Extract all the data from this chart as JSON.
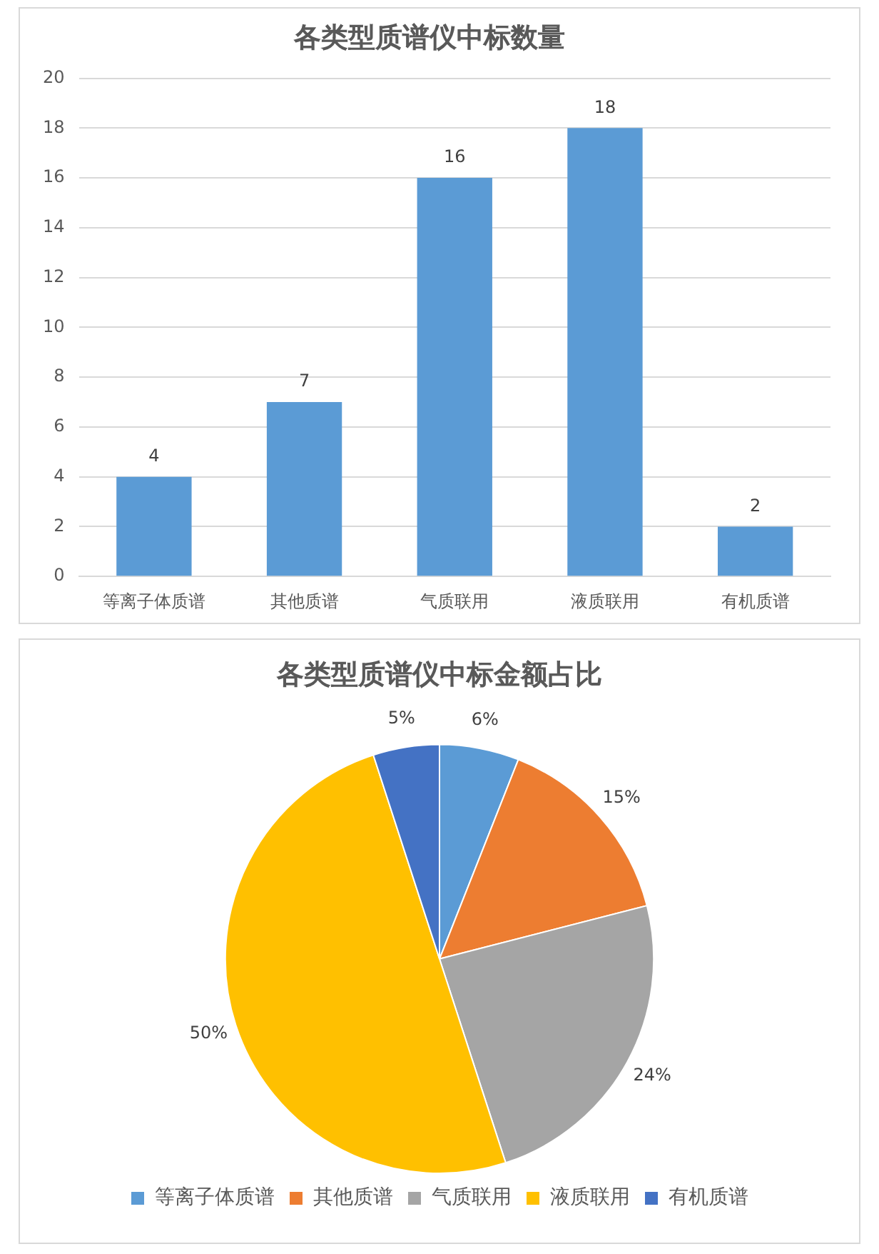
{
  "chart_data": [
    {
      "type": "bar",
      "title": "各类型质谱仪中标数量",
      "categories": [
        "等离子体质谱",
        "其他质谱",
        "气质联用",
        "液质联用",
        "有机质谱"
      ],
      "values": [
        4,
        7,
        16,
        18,
        2
      ],
      "color": "#5b9bd5",
      "ylim": [
        0,
        20
      ],
      "yticks": [
        0,
        2,
        4,
        6,
        8,
        10,
        12,
        14,
        16,
        18,
        20
      ],
      "grid": "y",
      "data_labels": true,
      "legend": false
    },
    {
      "type": "pie",
      "title": "各类型质谱仪中标金额占比",
      "categories": [
        "等离子体质谱",
        "其他质谱",
        "气质联用",
        "液质联用",
        "有机质谱"
      ],
      "values": [
        6,
        15,
        24,
        50,
        5
      ],
      "colors": [
        "#5b9bd5",
        "#ed7d31",
        "#a5a5a5",
        "#ffc000",
        "#4472c4"
      ],
      "value_labels": [
        "6%",
        "15%",
        "24%",
        "50%",
        "5%"
      ],
      "legend": "bottom"
    }
  ]
}
